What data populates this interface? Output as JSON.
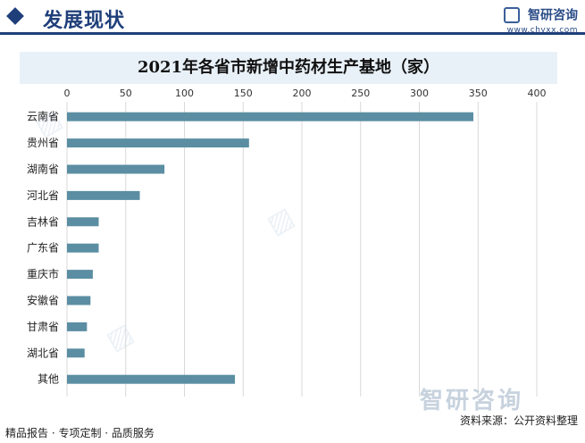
{
  "header": {
    "title": "发展现状"
  },
  "brand": {
    "name": "智研咨询",
    "url": "www.chyxx.com"
  },
  "watermark": {
    "text": "智研咨询"
  },
  "footer": {
    "left": "精品报告 · 专项定制 · 品质服务",
    "right": "资料来源：公开资料整理"
  },
  "colors": {
    "bar": "#5b8ea3",
    "accent": "#1f3f7a",
    "title_bg": "#e9f1f8",
    "grid": "#d9d9d9"
  },
  "chart_data": {
    "type": "bar",
    "orientation": "horizontal",
    "title": "2021年各省市新增中药材生产基地（家）",
    "categories": [
      "云南省",
      "贵州省",
      "湖南省",
      "河北省",
      "吉林省",
      "广东省",
      "重庆市",
      "安徽省",
      "甘肃省",
      "湖北省",
      "其他"
    ],
    "values": [
      346,
      155,
      83,
      62,
      27,
      27,
      22,
      20,
      17,
      15,
      143
    ],
    "xlim": [
      0,
      400
    ],
    "xticks": [
      0,
      50,
      100,
      150,
      200,
      250,
      300,
      350,
      400
    ],
    "xaxis_position": "top",
    "grid": true,
    "legend": "none",
    "xlabel": "",
    "ylabel": ""
  }
}
